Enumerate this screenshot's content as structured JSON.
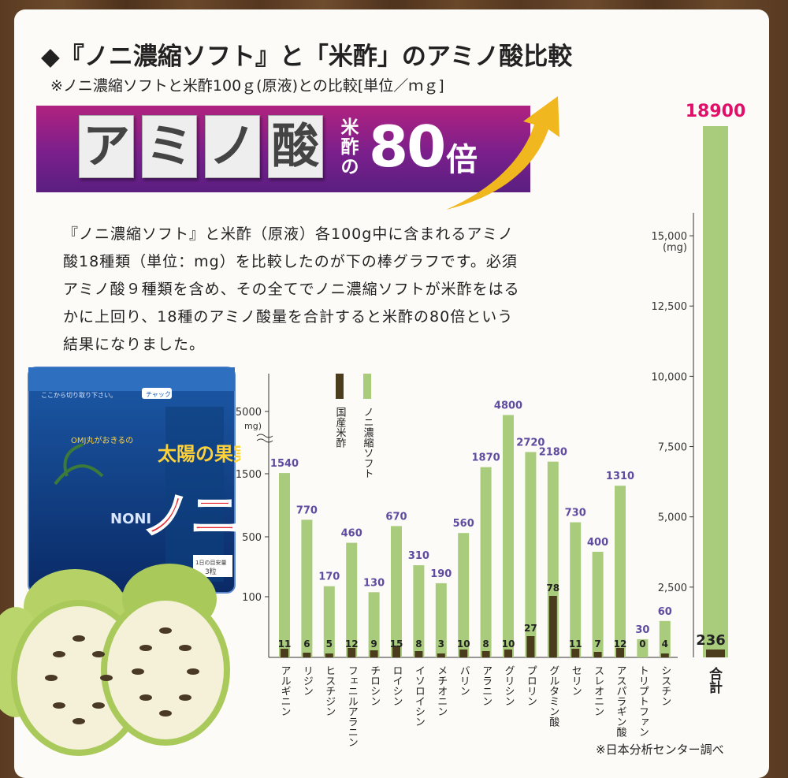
{
  "header": {
    "title": "◆『ノニ濃縮ソフト』と「米酢」のアミノ酸比較",
    "subtitle": "※ノニ濃縮ソフトと米酢100ｇ(原液)との比較[単位／ｍｇ]"
  },
  "banner": {
    "chars": [
      "ア",
      "ミ",
      "ノ",
      "酸"
    ],
    "small_l1": "米",
    "small_l2": "酢の",
    "number": "80",
    "unit": "倍",
    "accent": "#f0b81e",
    "bg_start": "#b0227f",
    "bg_end": "#5a1f80"
  },
  "description": "『ノニ濃縮ソフト』と米酢（原液）各100g中に含まれるアミノ酸18種類（単位：mg）を比較したのが下の棒グラフです。必須アミノ酸９種類を含め、その全てでノニ濃縮ソフトが米酢をはるかに上回り、18種のアミノ酸量を合計すると米酢の80倍という結果になりました。",
  "package": {
    "top_text": "ここから切り取り下さい。",
    "chuck_label": "チャック",
    "tagline": "OMJ丸がおきるの",
    "brand": "太陽の果実",
    "noni_en": "NONI",
    "noni_ja": "ノニ",
    "dose": "1日の目安量",
    "dose_value": "3粒"
  },
  "chart_data": {
    "type": "bar",
    "colors": {
      "noni": "#a8cc7c",
      "vinegar": "#4a3c1c"
    },
    "legend": [
      {
        "name": "国産米酢",
        "color": "#4a3c1c"
      },
      {
        "name": "ノニ濃縮ソフト",
        "color": "#a8cc7c"
      }
    ],
    "left_axis": {
      "ticks": [
        "5000",
        "1500",
        "500",
        "100"
      ],
      "unit": "mg)"
    },
    "categories": [
      "アルギニン",
      "リジン",
      "ヒスチジン",
      "フェニルアラニン",
      "チロシン",
      "ロイシン",
      "イソロイシン",
      "メチオニン",
      "バリン",
      "アラニン",
      "グリシン",
      "プロリン",
      "グルタミン酸",
      "セリン",
      "スレオニン",
      "アスパラギン酸",
      "トリプトファン",
      "シスチン"
    ],
    "category_labels": [
      "アルギニン",
      "リジン",
      "ヒスチジン",
      "フェニルアラニン",
      "チロシン",
      "ロイシン",
      "イソロイシン",
      "メチオニン",
      "バリン",
      "アラニン",
      "グリシン",
      "プロリン",
      "グルタミン酸",
      "セリン",
      "スレオニン",
      "アスパラギン酸",
      "トリプトファン",
      "シスチン"
    ],
    "series": [
      {
        "name": "ノニ濃縮ソフト",
        "values": [
          1540,
          770,
          170,
          460,
          130,
          670,
          310,
          190,
          560,
          1870,
          4800,
          2720,
          2180,
          730,
          400,
          1310,
          30,
          60
        ],
        "labels": [
          "1540",
          "770",
          "170",
          "460",
          "130",
          "670",
          "310",
          "190",
          "560",
          "1870",
          "4800",
          "2720",
          "2180",
          "730",
          "400",
          "1310",
          "30",
          "60"
        ]
      },
      {
        "name": "国産米酢",
        "values": [
          11,
          6,
          5,
          12,
          9,
          15,
          8,
          3,
          10,
          8,
          10,
          27,
          78,
          11,
          7,
          12,
          0,
          4
        ],
        "labels": [
          "11",
          "6",
          "5",
          "12",
          "9",
          "15",
          "8",
          "3",
          "10",
          "8",
          "10",
          "27",
          "78",
          "11",
          "7",
          "12",
          "0",
          "4"
        ]
      }
    ],
    "total": {
      "label": "合計",
      "noni": 18900,
      "vinegar": 236,
      "noni_label": "18900",
      "vinegar_label": "236"
    },
    "right_axis": {
      "ticks": [
        "15,000",
        "12,500",
        "10,000",
        "7,500",
        "5,000",
        "2,500"
      ],
      "tick_values": [
        15000,
        12500,
        10000,
        7500,
        5000,
        2500
      ],
      "unit": "(mg)",
      "ylim": [
        0,
        18900
      ]
    }
  },
  "footer": {
    "source": "※日本分析センター調べ"
  }
}
